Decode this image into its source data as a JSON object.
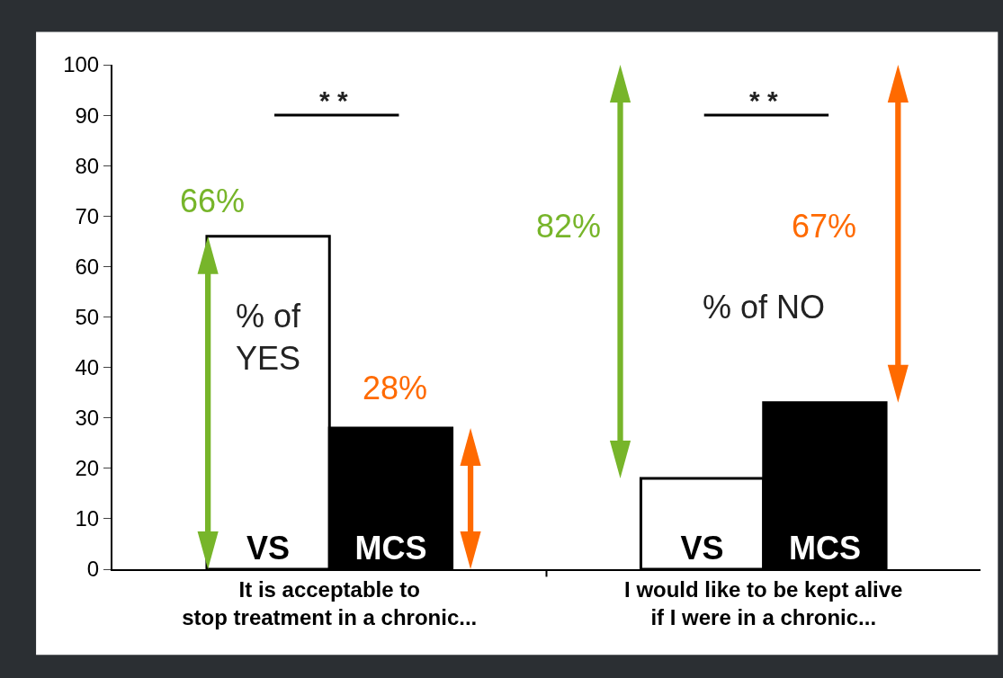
{
  "chart_data": {
    "type": "bar",
    "categories": [
      "It is acceptable to\nstop treatment in a chronic...",
      "I would like to be kept alive\nif I were in a chronic..."
    ],
    "series": [
      {
        "name": "VS",
        "color": "#ffffff",
        "values": [
          66,
          18
        ]
      },
      {
        "name": "MCS",
        "color": "#000000",
        "values": [
          28,
          33
        ]
      }
    ],
    "ylim": [
      0,
      100
    ],
    "yticks": [
      0,
      10,
      20,
      30,
      40,
      50,
      60,
      70,
      80,
      90,
      100
    ],
    "legend": false,
    "annotations": [
      "66%",
      "28%",
      "82%",
      "67%",
      "% of YES",
      "% of NO",
      "* *",
      "* *"
    ]
  }
}
